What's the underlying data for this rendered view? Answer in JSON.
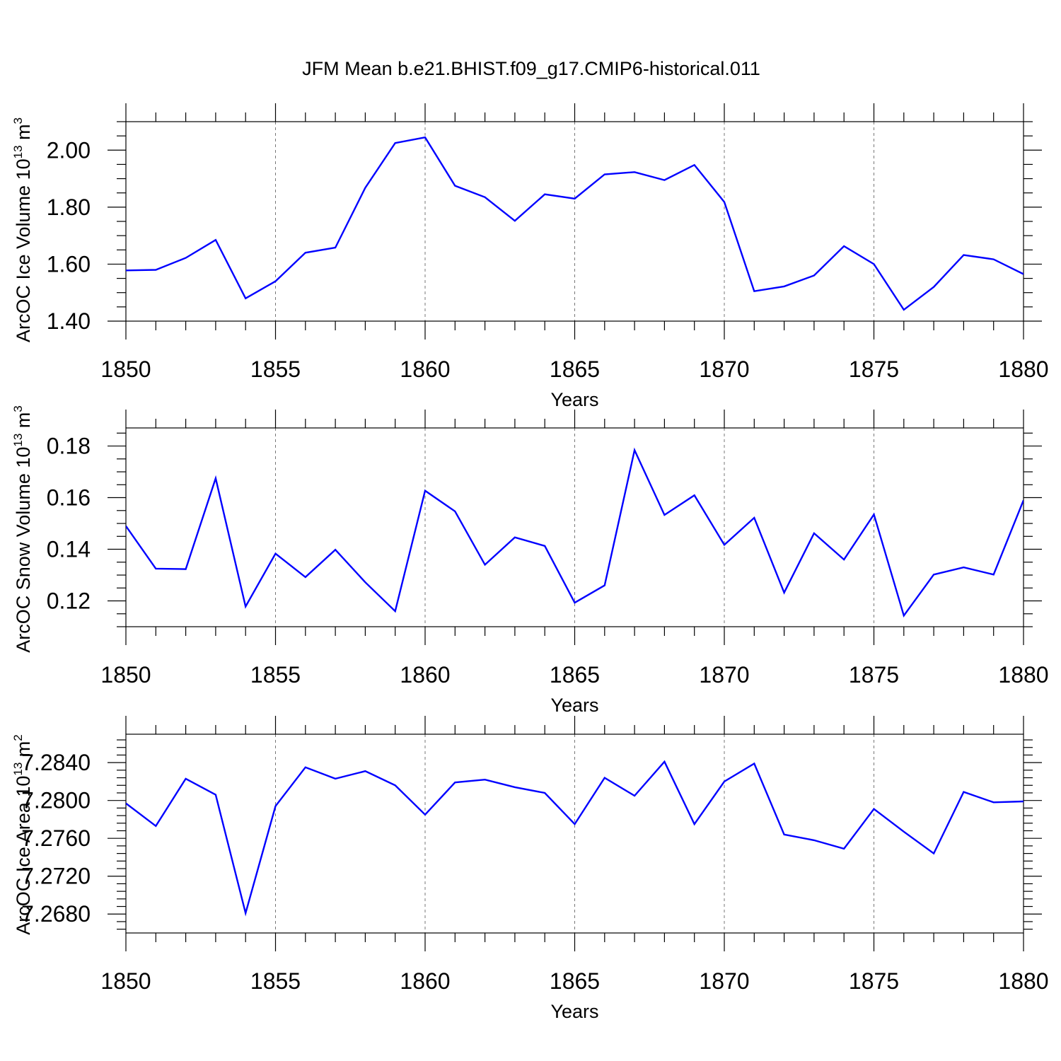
{
  "title": "JFM Mean b.e21.BHIST.f09_g17.CMIP6-historical.011",
  "colors": {
    "line": "#0000ff",
    "axis": "#000000",
    "grid": "#777777"
  },
  "chart_data": [
    {
      "type": "line",
      "xlabel": "Years",
      "ylabel": "ArcOC Ice Volume 10",
      "ylabel_sup": "13",
      "ylabel_unit": " m",
      "ylabel_unit_sup": "3",
      "xlim": [
        1850,
        1880
      ],
      "ylim": [
        1.4,
        2.1
      ],
      "xticks": [
        1850,
        1855,
        1860,
        1865,
        1870,
        1875,
        1880
      ],
      "xtick_labels": [
        "1850",
        "1855",
        "1860",
        "1865",
        "1870",
        "1875",
        "1880"
      ],
      "yticks": [
        1.4,
        1.6,
        1.8,
        2.0
      ],
      "ytick_labels": [
        "1.40",
        "1.60",
        "1.80",
        "2.00"
      ],
      "yminor": 0.05,
      "x": [
        1850,
        1851,
        1852,
        1853,
        1854,
        1855,
        1856,
        1857,
        1858,
        1859,
        1860,
        1861,
        1862,
        1863,
        1864,
        1865,
        1866,
        1867,
        1868,
        1869,
        1870,
        1871,
        1872,
        1873,
        1874,
        1875,
        1876,
        1877,
        1878,
        1879,
        1880
      ],
      "values": [
        1.578,
        1.58,
        1.622,
        1.685,
        1.48,
        1.54,
        1.64,
        1.658,
        1.868,
        2.025,
        2.045,
        1.875,
        1.835,
        1.752,
        1.845,
        1.83,
        1.915,
        1.923,
        1.895,
        1.948,
        1.818,
        1.505,
        1.522,
        1.56,
        1.663,
        1.6,
        1.44,
        1.52,
        1.632,
        1.617,
        1.565
      ]
    },
    {
      "type": "line",
      "xlabel": "Years",
      "ylabel": "ArcOC Snow Volume 10",
      "ylabel_sup": "13",
      "ylabel_unit": " m",
      "ylabel_unit_sup": "3",
      "xlim": [
        1850,
        1880
      ],
      "ylim": [
        0.11,
        0.187
      ],
      "xticks": [
        1850,
        1855,
        1860,
        1865,
        1870,
        1875,
        1880
      ],
      "xtick_labels": [
        "1850",
        "1855",
        "1860",
        "1865",
        "1870",
        "1875",
        "1880"
      ],
      "yticks": [
        0.12,
        0.14,
        0.16,
        0.18
      ],
      "ytick_labels": [
        "0.12",
        "0.14",
        "0.16",
        "0.18"
      ],
      "yminor": 0.005,
      "x": [
        1850,
        1851,
        1852,
        1853,
        1854,
        1855,
        1856,
        1857,
        1858,
        1859,
        1860,
        1861,
        1862,
        1863,
        1864,
        1865,
        1866,
        1867,
        1868,
        1869,
        1870,
        1871,
        1872,
        1873,
        1874,
        1875,
        1876,
        1877,
        1878,
        1879,
        1880
      ],
      "values": [
        0.149,
        0.1325,
        0.1323,
        0.1675,
        0.1178,
        0.1383,
        0.1292,
        0.1398,
        0.1272,
        0.116,
        0.1627,
        0.1547,
        0.134,
        0.1446,
        0.1413,
        0.1193,
        0.126,
        0.1784,
        0.1533,
        0.1609,
        0.1417,
        0.1522,
        0.1232,
        0.1462,
        0.136,
        0.1535,
        0.1143,
        0.1302,
        0.133,
        0.1302,
        0.159
      ]
    },
    {
      "type": "line",
      "xlabel": "Years",
      "ylabel": "ArcOC Ice Area 10",
      "ylabel_sup": "13",
      "ylabel_unit": " m",
      "ylabel_unit_sup": "2",
      "xlim": [
        1850,
        1880
      ],
      "ylim": [
        7.266,
        7.287
      ],
      "xticks": [
        1850,
        1855,
        1860,
        1865,
        1870,
        1875,
        1880
      ],
      "xtick_labels": [
        "1850",
        "1855",
        "1860",
        "1865",
        "1870",
        "1875",
        "1880"
      ],
      "yticks": [
        7.268,
        7.272,
        7.276,
        7.28,
        7.284
      ],
      "ytick_labels": [
        "7.2680",
        "7.2720",
        "7.2760",
        "7.2800",
        "7.2840"
      ],
      "yminor": 0.0008,
      "x": [
        1850,
        1851,
        1852,
        1853,
        1854,
        1855,
        1856,
        1857,
        1858,
        1859,
        1860,
        1861,
        1862,
        1863,
        1864,
        1865,
        1866,
        1867,
        1868,
        1869,
        1870,
        1871,
        1872,
        1873,
        1874,
        1875,
        1876,
        1877,
        1878,
        1879,
        1880
      ],
      "values": [
        7.2797,
        7.2773,
        7.2823,
        7.2806,
        7.2681,
        7.2794,
        7.2835,
        7.2823,
        7.2831,
        7.2816,
        7.2785,
        7.2819,
        7.2822,
        7.2814,
        7.2808,
        7.2775,
        7.2824,
        7.2805,
        7.2841,
        7.2775,
        7.282,
        7.2839,
        7.2764,
        7.2758,
        7.2749,
        7.2791,
        7.2767,
        7.2744,
        7.2809,
        7.2798,
        7.2799
      ]
    }
  ]
}
